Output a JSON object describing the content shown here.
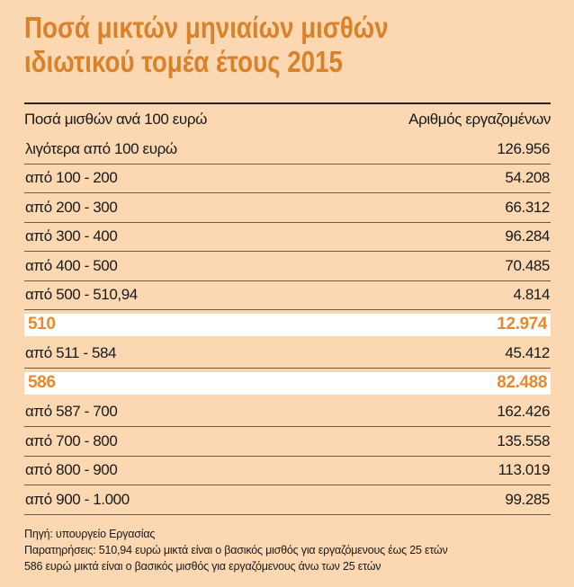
{
  "title": [
    "Ποσά μικτών μηνιαίων μισθών",
    "ιδιωτικού τομέα έτους 2015"
  ],
  "colors": {
    "background": "#fbd7b2",
    "accent": "#d9822b",
    "highlight_row": "#ffffff"
  },
  "chart_data": {
    "type": "table",
    "title": "Ποσά μικτών μηνιαίων μισθών ιδιωτικού τομέα έτους 2015",
    "columns": [
      "Ποσά μισθών ανά 100  ευρώ",
      "Αριθμός εργαζομένων"
    ],
    "rows": [
      {
        "range": "λιγότερα από 100 ευρώ",
        "count": "126.956",
        "highlight": false
      },
      {
        "range": "από 100 - 200",
        "count": "54.208",
        "highlight": false
      },
      {
        "range": "από 200 - 300",
        "count": "66.312",
        "highlight": false
      },
      {
        "range": "από 300 - 400",
        "count": "96.284",
        "highlight": false
      },
      {
        "range": "από 400 - 500",
        "count": "70.485",
        "highlight": false
      },
      {
        "range": "από 500 - 510,94",
        "count": "4.814",
        "highlight": false
      },
      {
        "range": "510",
        "count": "12.974",
        "highlight": true
      },
      {
        "range": "από 511 - 584",
        "count": "45.412",
        "highlight": false
      },
      {
        "range": "586",
        "count": "82.488",
        "highlight": true
      },
      {
        "range": "από 587 - 700",
        "count": "162.426",
        "highlight": false
      },
      {
        "range": "από 700 - 800",
        "count": "135.558",
        "highlight": false
      },
      {
        "range": "από 800 - 900",
        "count": "113.019",
        "highlight": false
      },
      {
        "range": "από 900 - 1.000",
        "count": "99.285",
        "highlight": false
      }
    ]
  },
  "notes": [
    "Πηγή: υπουργείο Εργασίας",
    "Παρατηρήσεις: 510,94 ευρώ μικτά είναι ο βασικός μισθός για εργαζόμενους έως 25 ετών",
    "586 ευρώ μικτά είναι ο βασικός μισθός για εργαζόμενους άνω των 25 ετών"
  ]
}
